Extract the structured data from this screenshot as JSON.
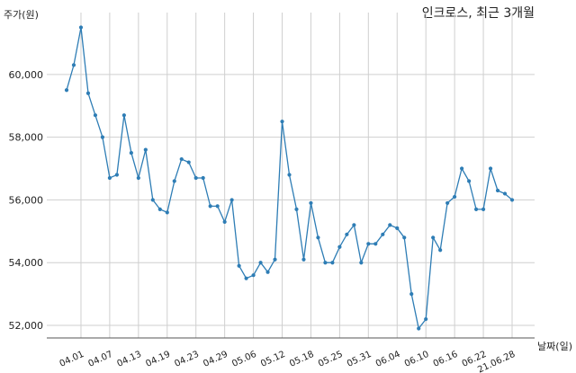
{
  "chart_data": {
    "type": "line",
    "title": "인크로스, 최근 3개월",
    "ylabel": "주가(원)",
    "xlabel": "날짜(일)",
    "ylim": [
      51600,
      61800
    ],
    "yticks": [
      52000,
      54000,
      56000,
      58000,
      60000
    ],
    "ytick_labels": [
      "52,000",
      "54,000",
      "56,000",
      "58,000",
      "60,000"
    ],
    "xtick_labels": [
      "04.01",
      "04.07",
      "04.13",
      "04.19",
      "04.23",
      "04.29",
      "05.06",
      "05.12",
      "05.18",
      "05.25",
      "05.31",
      "06.04",
      "06.10",
      "06.16",
      "06.22",
      "21.06.28"
    ],
    "xtick_index": [
      2,
      6,
      10,
      14,
      18,
      22,
      26,
      30,
      34,
      38,
      42,
      46,
      50,
      54,
      58,
      62
    ],
    "grid": true,
    "line_color": "#2e7db5",
    "series": [
      {
        "values": [
          59500,
          60300,
          61500,
          59400,
          58700,
          58000,
          56700,
          56800,
          58700,
          57500,
          56700,
          57600,
          56000,
          55700,
          55600,
          56600,
          57300,
          57200,
          56700,
          56700,
          55800,
          55800,
          55300,
          56000,
          53900,
          53500,
          53600,
          54000,
          53700,
          54100,
          58500,
          56800,
          55700,
          54100,
          55900,
          54800,
          54000,
          54000,
          54500,
          54900,
          55200,
          54000,
          54600,
          54600,
          54900,
          55200,
          55100,
          54800,
          53000,
          51900,
          52200,
          54800,
          54400,
          55900,
          56100,
          57000,
          56600,
          55700,
          55700,
          57000,
          56300,
          56200,
          56000
        ]
      }
    ]
  }
}
